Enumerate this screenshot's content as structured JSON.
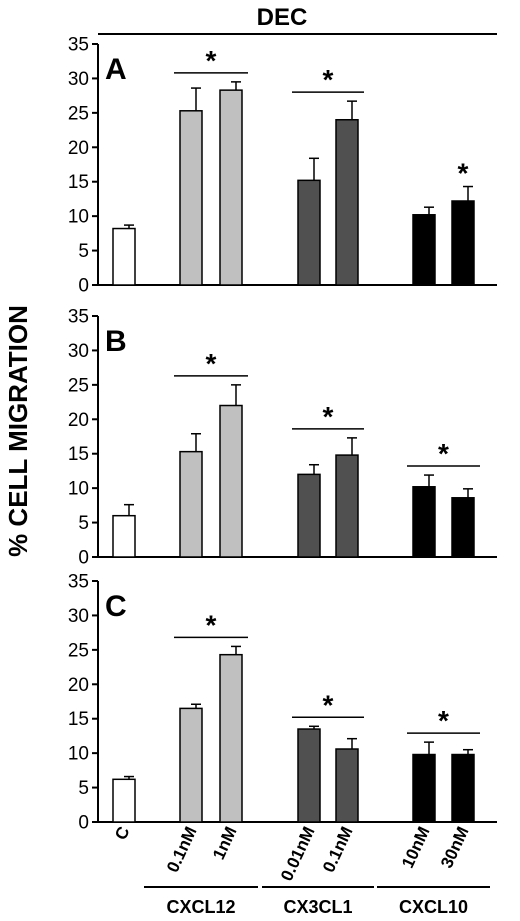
{
  "chart_data": {
    "type": "bar",
    "title": "DEC",
    "ylabel": "% CELL MIGRATION",
    "ylim": [
      0,
      35
    ],
    "yticks": [
      0,
      5,
      10,
      15,
      20,
      25,
      30,
      35
    ],
    "categories": [
      "C",
      "0.1nM",
      "1nM",
      "0.01nM",
      "0.1nM",
      "10nM",
      "30nM"
    ],
    "groups": [
      {
        "label": "CXCL12",
        "members": [
          1,
          2
        ]
      },
      {
        "label": "CX3CL1",
        "members": [
          3,
          4
        ]
      },
      {
        "label": "CXCL10",
        "members": [
          5,
          6
        ]
      }
    ],
    "colors": [
      "#ffffff",
      "#c0c0c0",
      "#c0c0c0",
      "#505050",
      "#505050",
      "#000000",
      "#000000"
    ],
    "significance": "*",
    "panels": [
      {
        "label": "A",
        "values": [
          8.2,
          25.3,
          28.3,
          15.2,
          24.0,
          10.2,
          12.2
        ],
        "errors": [
          0.5,
          3.3,
          1.2,
          3.2,
          2.7,
          1.1,
          2.1
        ],
        "significance_groups": [
          [
            1,
            2
          ],
          [
            3,
            4
          ],
          [
            6,
            6
          ]
        ]
      },
      {
        "label": "B",
        "values": [
          6.0,
          15.3,
          22.0,
          12.0,
          14.8,
          10.2,
          8.6
        ],
        "errors": [
          1.6,
          2.6,
          3.0,
          1.4,
          2.5,
          1.7,
          1.3
        ],
        "significance_groups": [
          [
            1,
            2
          ],
          [
            3,
            4
          ],
          [
            5,
            6
          ]
        ]
      },
      {
        "label": "C",
        "values": [
          6.2,
          16.5,
          24.3,
          13.5,
          10.6,
          9.8,
          9.8
        ],
        "errors": [
          0.4,
          0.6,
          1.2,
          0.4,
          1.5,
          1.8,
          0.7
        ],
        "significance_groups": [
          [
            1,
            2
          ],
          [
            3,
            4
          ],
          [
            5,
            6
          ]
        ]
      }
    ]
  }
}
